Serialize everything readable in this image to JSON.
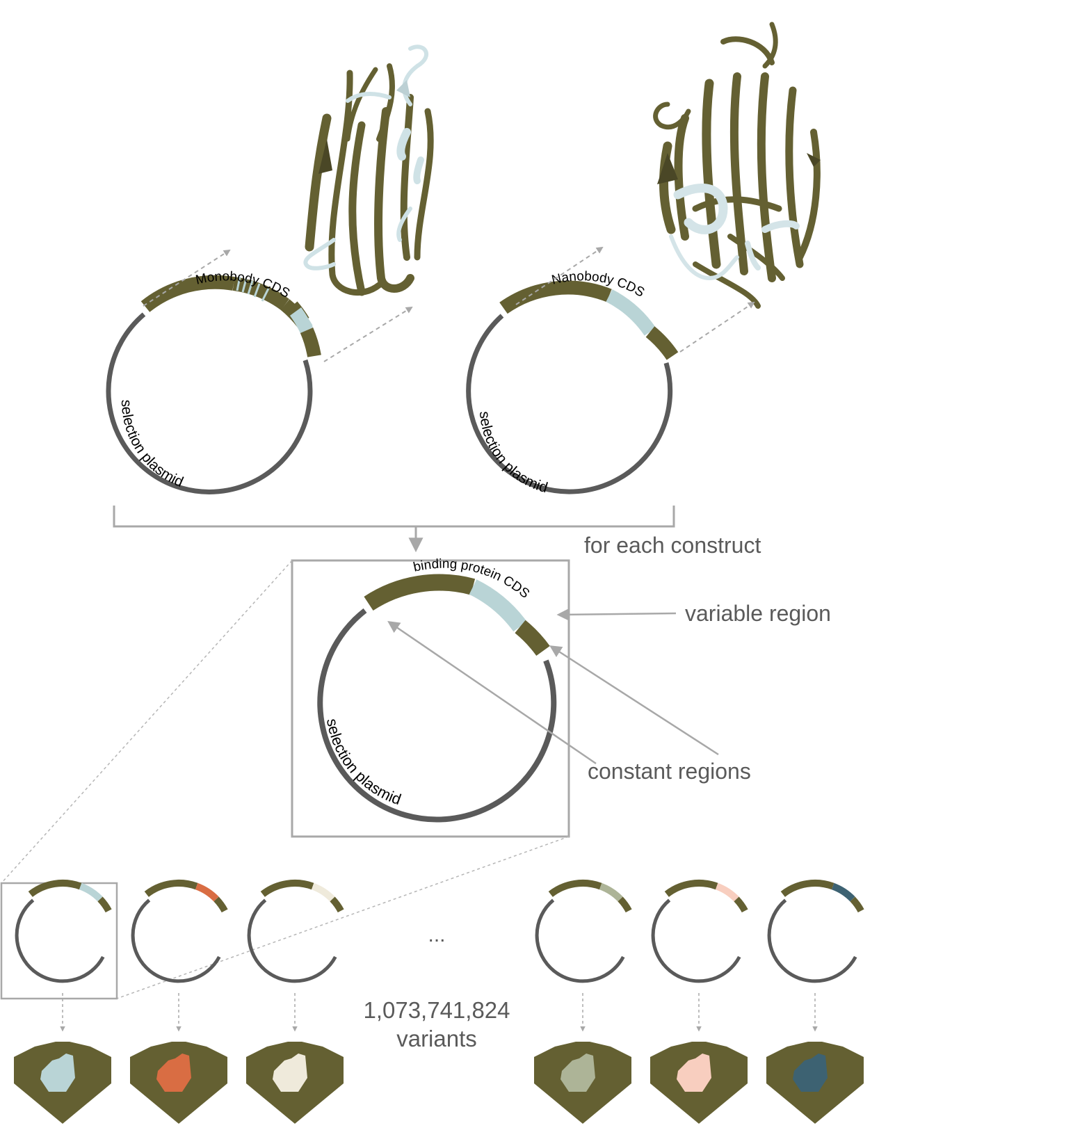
{
  "labels": {
    "monobody_cds": "Monobody CDS",
    "nanobody_cds": "Nanobody CDS",
    "selection_plasmid": "selection plasmid",
    "for_each_construct": "for each construct",
    "binding_protein_cds": "binding protein CDS",
    "variable_region": "variable region",
    "constant_regions": "constant regions",
    "ellipsis": "...",
    "variant_count": "1,073,741,824",
    "variants_word": "variants"
  },
  "colors": {
    "olive": "#646032",
    "light_blue": "#b9d4d6",
    "plasmid_gray": "#5a5a5a",
    "guide_gray": "#a8a8a8"
  },
  "variant_colors": [
    "#b9d4d6",
    "#d96d43",
    "#efeadb",
    "#adb497",
    "#f8cebf",
    "#3d6272"
  ]
}
